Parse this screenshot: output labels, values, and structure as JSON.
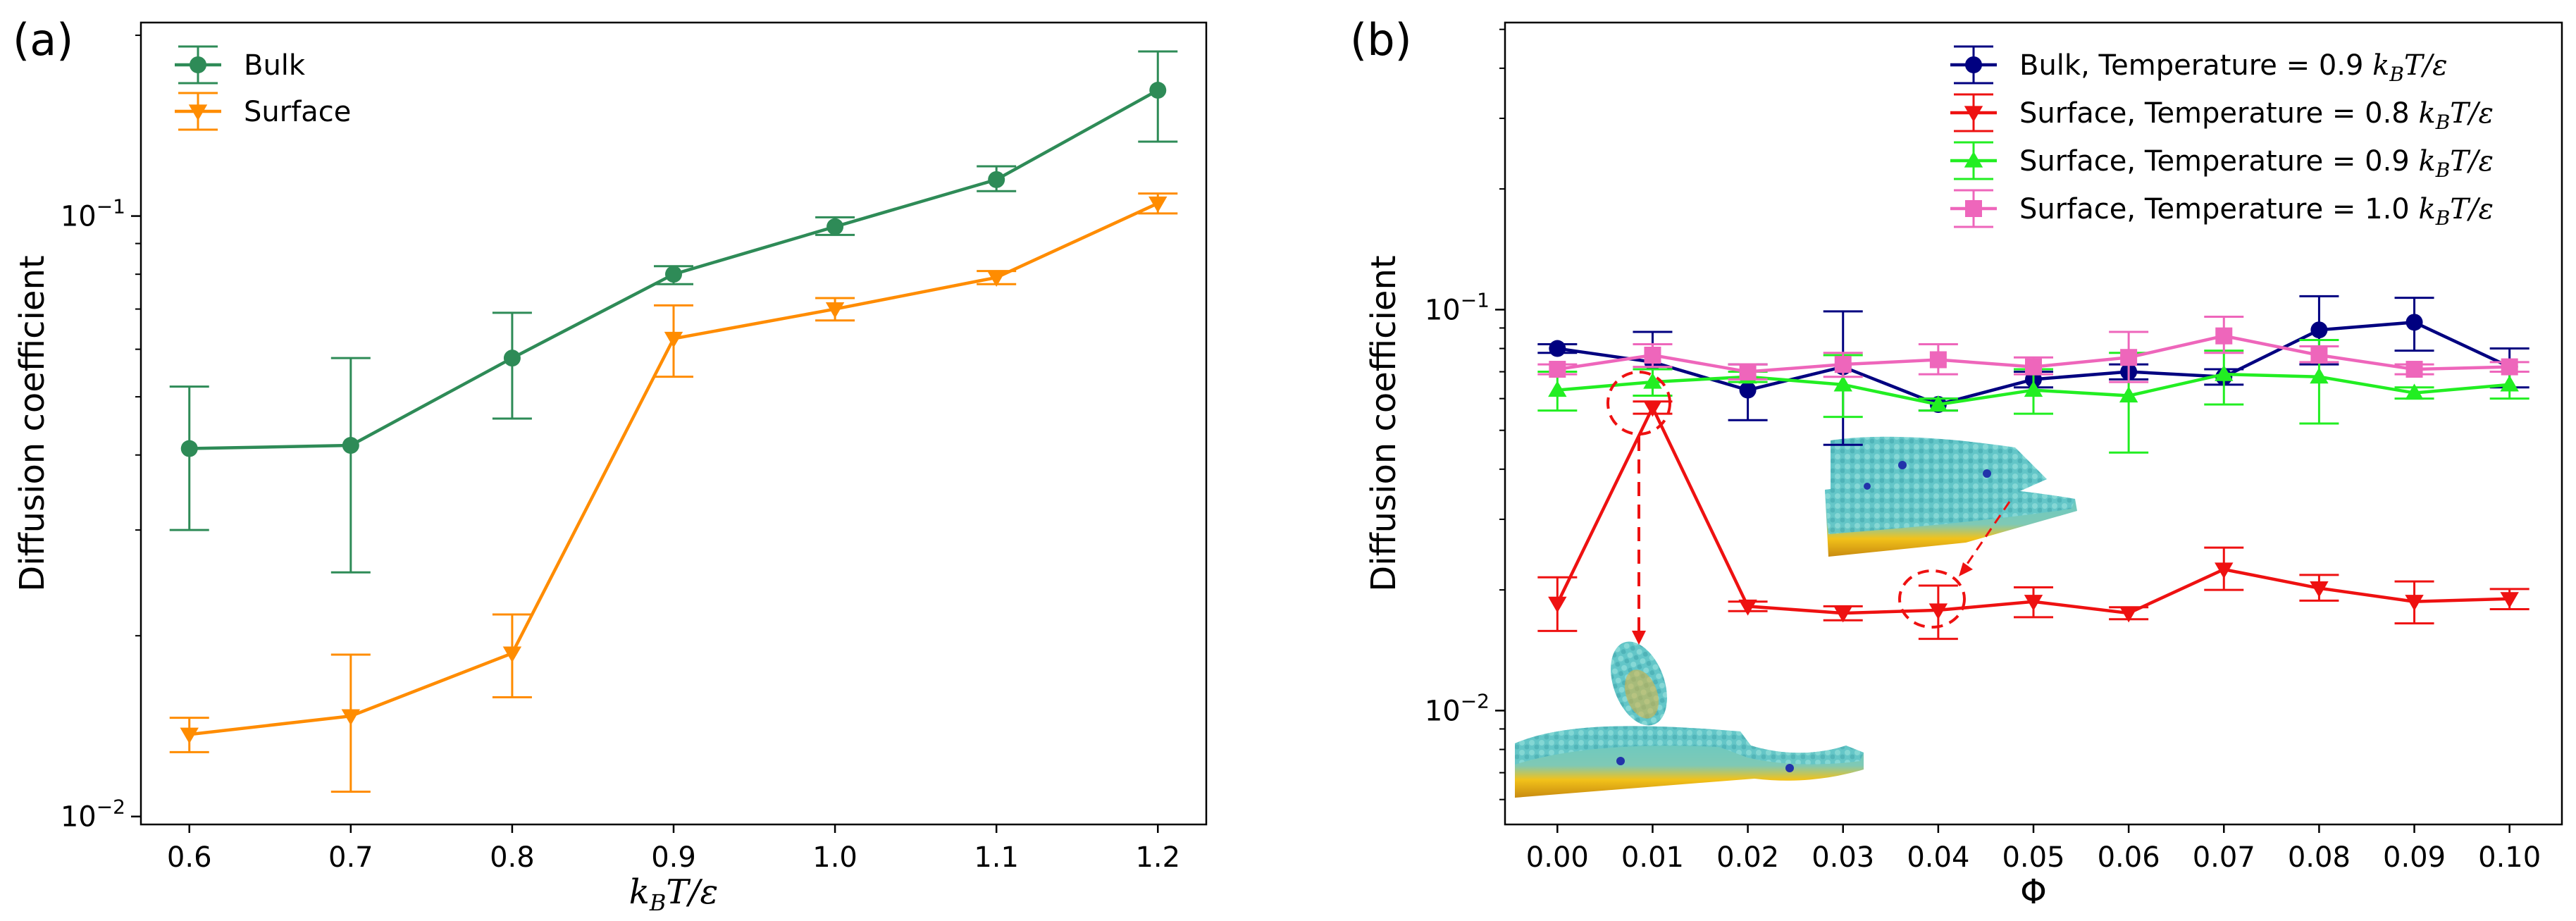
{
  "chart_data": [
    {
      "panel": "(a)",
      "type": "line",
      "xlabel": "k_BT/ε",
      "xlabel_parts": {
        "k": "k",
        "sub": "B",
        "rest": "T/ε"
      },
      "ylabel": "Diffusion coefficient",
      "yscale": "log",
      "xlim": [
        0.57,
        1.23
      ],
      "ylim": [
        0.0097,
        0.21
      ],
      "xticks": [
        "0.6",
        "0.7",
        "0.8",
        "0.9",
        "1.0",
        "1.1",
        "1.2"
      ],
      "yticks": [
        {
          "base": "10",
          "exp": "−1",
          "value": 0.1
        },
        {
          "base": "10",
          "exp": "−2",
          "value": 0.01
        }
      ],
      "legend_position": "top-left",
      "series": [
        {
          "name": "Bulk",
          "color": "#2e8b57",
          "marker": "circle",
          "x": [
            0.6,
            0.7,
            0.8,
            0.9,
            1.0,
            1.1,
            1.2
          ],
          "y": [
            0.041,
            0.0415,
            0.058,
            0.08,
            0.096,
            0.115,
            0.162
          ],
          "err_low": [
            0.03,
            0.0255,
            0.046,
            0.077,
            0.093,
            0.11,
            0.133
          ],
          "err_high": [
            0.052,
            0.058,
            0.069,
            0.0825,
            0.0995,
            0.121,
            0.188
          ]
        },
        {
          "name": "Surface",
          "color": "#ff8c00",
          "marker": "triangle-down",
          "x": [
            0.6,
            0.7,
            0.8,
            0.9,
            1.0,
            1.1,
            1.2
          ],
          "y": [
            0.0137,
            0.0147,
            0.0187,
            0.0625,
            0.07,
            0.079,
            0.105
          ],
          "err_low": [
            0.0128,
            0.011,
            0.0158,
            0.054,
            0.067,
            0.077,
            0.101
          ],
          "err_high": [
            0.0146,
            0.0186,
            0.0217,
            0.071,
            0.073,
            0.081,
            0.109
          ]
        }
      ]
    },
    {
      "panel": "(b)",
      "type": "line",
      "xlabel": "Φ",
      "ylabel": "Diffusion coefficient",
      "yscale": "log",
      "xlim": [
        -0.0055,
        0.1055
      ],
      "ylim": [
        0.0052,
        0.52
      ],
      "xticks": [
        "0.00",
        "0.01",
        "0.02",
        "0.03",
        "0.04",
        "0.05",
        "0.06",
        "0.07",
        "0.08",
        "0.09",
        "0.10"
      ],
      "yticks": [
        {
          "base": "10",
          "exp": "−1",
          "value": 0.1
        },
        {
          "base": "10",
          "exp": "−2",
          "value": 0.01
        }
      ],
      "legend_position": "top-right",
      "series": [
        {
          "name": "Bulk, Temperature = 0.9 k_BT/ε",
          "label_text": "Bulk, Temperature = 0.9",
          "color": "#000080",
          "marker": "circle",
          "x": [
            0.0,
            0.01,
            0.02,
            0.03,
            0.04,
            0.05,
            0.06,
            0.07,
            0.08,
            0.09,
            0.1
          ],
          "y": [
            0.08,
            0.074,
            0.063,
            0.072,
            0.058,
            0.067,
            0.07,
            0.068,
            0.089,
            0.093,
            0.072
          ],
          "err_low": [
            0.078,
            0.061,
            0.053,
            0.046,
            0.056,
            0.064,
            0.067,
            0.065,
            0.073,
            0.079,
            0.064
          ],
          "err_high": [
            0.082,
            0.088,
            0.073,
            0.099,
            0.06,
            0.07,
            0.073,
            0.071,
            0.108,
            0.107,
            0.08
          ]
        },
        {
          "name": "Surface, Temperature = 0.8 k_BT/ε",
          "label_text": "Surface, Temperature = 0.8",
          "color": "#ee1111",
          "marker": "triangle-down",
          "x": [
            0.0,
            0.01,
            0.02,
            0.03,
            0.04,
            0.05,
            0.06,
            0.07,
            0.08,
            0.09,
            0.1
          ],
          "y": [
            0.0185,
            0.057,
            0.0182,
            0.0175,
            0.0178,
            0.0187,
            0.0175,
            0.0225,
            0.0202,
            0.0187,
            0.019
          ],
          "err_low": [
            0.0158,
            0.055,
            0.0177,
            0.0168,
            0.0151,
            0.0171,
            0.0169,
            0.02,
            0.0188,
            0.0165,
            0.0179
          ],
          "err_high": [
            0.0215,
            0.059,
            0.0187,
            0.0182,
            0.0205,
            0.0203,
            0.0181,
            0.0255,
            0.0218,
            0.021,
            0.0201
          ]
        },
        {
          "name": "Surface, Temperature = 0.9 k_BT/ε",
          "label_text": "Surface, Temperature = 0.9",
          "color": "#22ee22",
          "marker": "triangle-up",
          "x": [
            0.0,
            0.01,
            0.02,
            0.03,
            0.04,
            0.05,
            0.06,
            0.07,
            0.08,
            0.09,
            0.1
          ],
          "y": [
            0.063,
            0.066,
            0.068,
            0.065,
            0.058,
            0.063,
            0.061,
            0.069,
            0.068,
            0.062,
            0.065
          ],
          "err_low": [
            0.056,
            0.061,
            0.066,
            0.054,
            0.056,
            0.055,
            0.044,
            0.058,
            0.052,
            0.06,
            0.06
          ],
          "err_high": [
            0.07,
            0.071,
            0.07,
            0.077,
            0.06,
            0.071,
            0.078,
            0.079,
            0.084,
            0.064,
            0.07
          ]
        },
        {
          "name": "Surface, Temperature = 1.0 k_BT/ε",
          "label_text": "Surface, Temperature = 1.0",
          "color": "#ee66bb",
          "marker": "square",
          "x": [
            0.0,
            0.01,
            0.02,
            0.03,
            0.04,
            0.05,
            0.06,
            0.07,
            0.08,
            0.09,
            0.1
          ],
          "y": [
            0.071,
            0.077,
            0.07,
            0.073,
            0.075,
            0.072,
            0.076,
            0.086,
            0.077,
            0.071,
            0.072
          ],
          "err_low": [
            0.069,
            0.072,
            0.067,
            0.068,
            0.069,
            0.069,
            0.066,
            0.078,
            0.074,
            0.069,
            0.07
          ],
          "err_high": [
            0.073,
            0.082,
            0.073,
            0.078,
            0.082,
            0.076,
            0.088,
            0.096,
            0.081,
            0.073,
            0.074
          ]
        }
      ]
    }
  ]
}
